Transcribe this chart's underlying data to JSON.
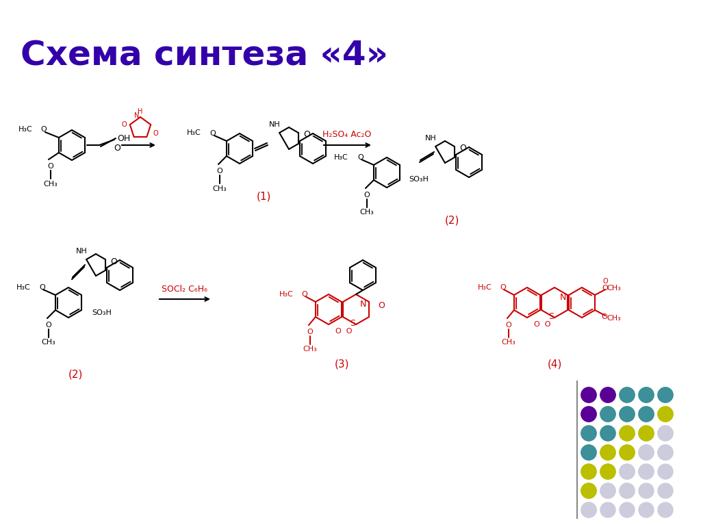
{
  "title": "Схема синтеза «4»",
  "title_color": "#3300AA",
  "title_fontsize": 36,
  "title_bold": true,
  "bg_color": "#FFFFFF",
  "dot_colors": [
    "#5B0096",
    "#3D9099",
    "#BBBF00",
    "#CCCCDD"
  ],
  "dot_grid": [
    [
      0,
      0,
      1,
      1,
      1
    ],
    [
      0,
      1,
      1,
      1,
      2
    ],
    [
      1,
      1,
      2,
      2,
      3
    ],
    [
      1,
      2,
      2,
      3,
      3
    ],
    [
      2,
      2,
      3,
      3,
      4
    ],
    [
      2,
      3,
      3,
      4,
      4
    ],
    [
      3,
      4,
      4,
      4,
      4
    ]
  ],
  "reagent1_color": "#CC0000",
  "reagent2_color": "#CC0000",
  "struct_color": "#000000",
  "arrow_color": "#000000",
  "label_color": "#CC0000",
  "reaction_label1": "H₂SO₄ Ac₂O",
  "reaction_label2": "SOCl₂ C₆H₆",
  "compound_labels": [
    "(1)",
    "(2)",
    "(2)",
    "(3)",
    "(4)"
  ],
  "line_color": "#888888"
}
